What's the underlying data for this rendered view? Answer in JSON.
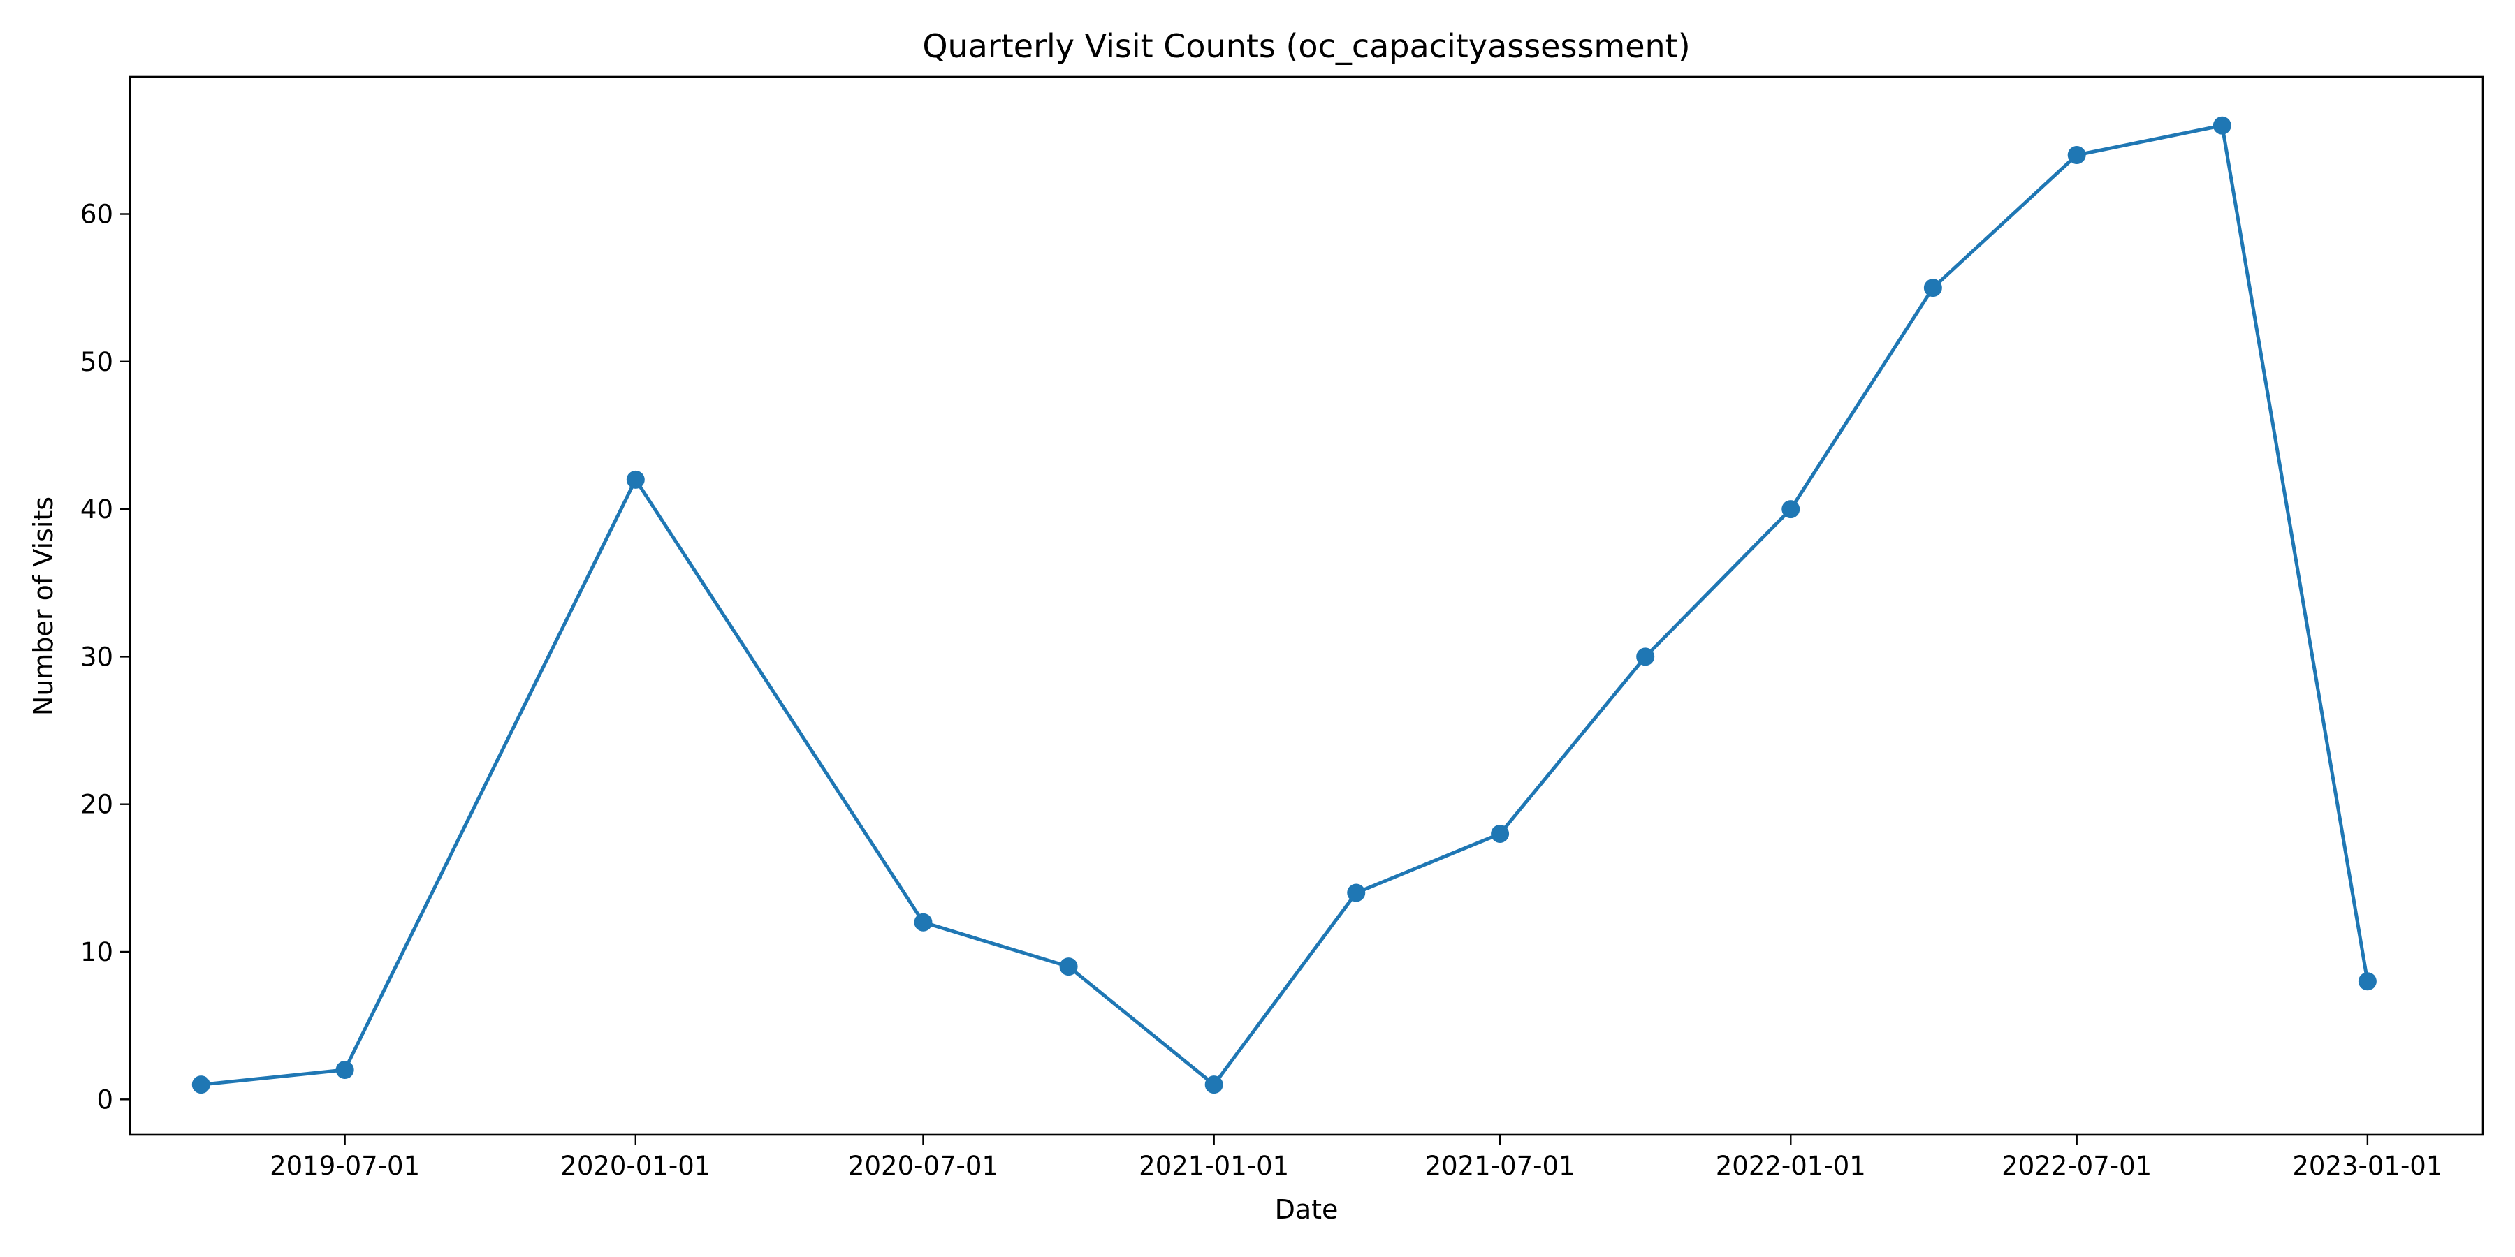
{
  "chart_data": {
    "type": "line",
    "title": "Quarterly Visit Counts (oc_capacityassessment)",
    "xlabel": "Date",
    "ylabel": "Number of Visits",
    "x_ticks": [
      "2019-07-01",
      "2020-01-01",
      "2020-07-01",
      "2021-01-01",
      "2021-07-01",
      "2022-01-01",
      "2022-07-01",
      "2023-01-01"
    ],
    "y_ticks": [
      0,
      10,
      20,
      30,
      40,
      50,
      60
    ],
    "grid": false,
    "legend": false,
    "line_color": "#1f77b4",
    "series": [
      {
        "x": [
          "2019-04-01",
          "2019-07-01",
          "2020-01-01",
          "2020-07-01",
          "2020-10-01",
          "2021-01-01",
          "2021-04-01",
          "2021-07-01",
          "2021-10-01",
          "2022-01-01",
          "2022-04-01",
          "2022-07-01",
          "2022-10-01",
          "2023-01-01"
        ],
        "values": [
          1,
          2,
          42,
          12,
          9,
          1,
          14,
          18,
          30,
          40,
          55,
          64,
          66,
          8
        ]
      }
    ]
  }
}
